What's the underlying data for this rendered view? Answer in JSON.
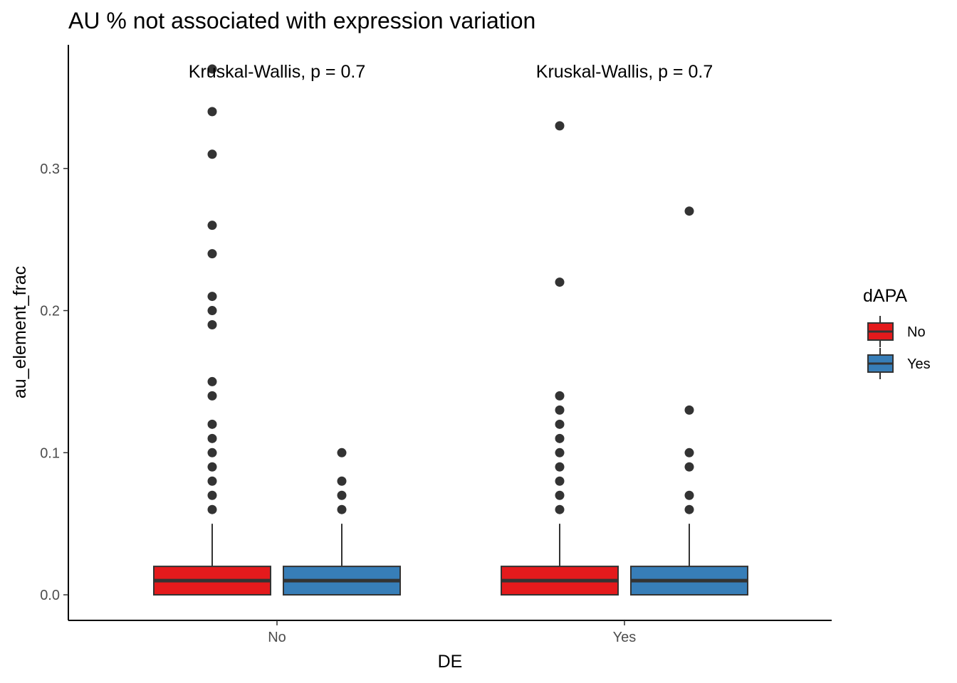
{
  "chart_data": {
    "type": "boxplot",
    "title": "AU % not associated with expression variation",
    "xlabel": "DE",
    "ylabel": "au_element_frac",
    "categories": [
      "No",
      "Yes"
    ],
    "ylim": [
      -0.018,
      0.387
    ],
    "yticks": [
      0.0,
      0.1,
      0.2,
      0.3
    ],
    "ytick_labels": [
      "0.0",
      "0.1",
      "0.2",
      "0.3"
    ],
    "grid": false,
    "legend": {
      "title": "dAPA",
      "position": "right",
      "entries": [
        {
          "label": "No",
          "color": "#e41a1c"
        },
        {
          "label": "Yes",
          "color": "#377eb8"
        }
      ]
    },
    "annotations": [
      {
        "category": "No",
        "text": "Kruskal-Wallis, p = 0.7"
      },
      {
        "category": "Yes",
        "text": "Kruskal-Wallis, p = 0.7"
      }
    ],
    "series": [
      {
        "name": "No",
        "color": "#e41a1c",
        "boxes": [
          {
            "category": "No",
            "min": 0.0,
            "q1": 0.0,
            "median": 0.01,
            "q3": 0.02,
            "max": 0.05,
            "outliers": [
              0.06,
              0.07,
              0.08,
              0.09,
              0.1,
              0.11,
              0.12,
              0.14,
              0.15,
              0.19,
              0.2,
              0.21,
              0.24,
              0.26,
              0.31,
              0.34,
              0.37
            ]
          },
          {
            "category": "Yes",
            "min": 0.0,
            "q1": 0.0,
            "median": 0.01,
            "q3": 0.02,
            "max": 0.05,
            "outliers": [
              0.06,
              0.07,
              0.08,
              0.09,
              0.1,
              0.11,
              0.12,
              0.13,
              0.14,
              0.22,
              0.33
            ]
          }
        ]
      },
      {
        "name": "Yes",
        "color": "#377eb8",
        "boxes": [
          {
            "category": "No",
            "min": 0.0,
            "q1": 0.0,
            "median": 0.01,
            "q3": 0.02,
            "max": 0.05,
            "outliers": [
              0.06,
              0.07,
              0.08,
              0.1
            ]
          },
          {
            "category": "Yes",
            "min": 0.0,
            "q1": 0.0,
            "median": 0.01,
            "q3": 0.02,
            "max": 0.05,
            "outliers": [
              0.06,
              0.07,
              0.09,
              0.1,
              0.13,
              0.27
            ]
          }
        ]
      }
    ]
  }
}
